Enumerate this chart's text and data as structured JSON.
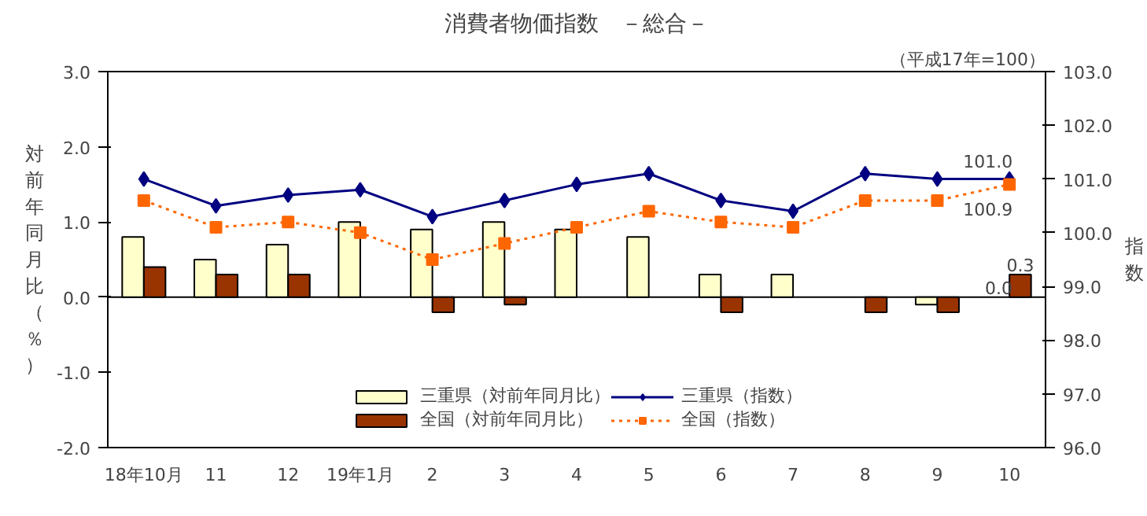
{
  "chart_data": {
    "type": "bar",
    "title": "消費者物価指数　－総合－",
    "subtitle": "（平成17年=100）",
    "ylabel": "対前年同月比（％）",
    "y2label": "指数",
    "categories": [
      "18年10月",
      "11",
      "12",
      "19年1月",
      "2",
      "3",
      "4",
      "5",
      "6",
      "7",
      "8",
      "9",
      "10"
    ],
    "series": [
      {
        "name": "三重県（対前年同月比）",
        "color": "#ffffcc",
        "values": [
          0.8,
          0.5,
          0.7,
          1.0,
          0.9,
          1.0,
          0.9,
          0.8,
          0.3,
          0.3,
          0.0,
          -0.1,
          0.0
        ],
        "value_labels": [
          null,
          null,
          null,
          null,
          null,
          null,
          null,
          null,
          null,
          null,
          null,
          null,
          "0.0"
        ]
      },
      {
        "name": "全国（対前年同月比）",
        "color": "#993300",
        "values": [
          0.4,
          0.3,
          0.3,
          0.0,
          -0.2,
          -0.1,
          0.0,
          0.0,
          -0.2,
          0.0,
          -0.2,
          -0.2,
          0.3
        ],
        "value_labels": [
          null,
          null,
          null,
          null,
          null,
          null,
          null,
          null,
          null,
          null,
          null,
          null,
          "0.3"
        ]
      },
      {
        "name": "三重県（指数）",
        "type": "line",
        "axis": "y2",
        "color": "#000080",
        "marker": "diamond",
        "line_style": "solid",
        "values": [
          101.0,
          100.5,
          100.7,
          100.8,
          100.3,
          100.6,
          100.9,
          101.1,
          100.6,
          100.4,
          101.1,
          101.0,
          101.0
        ],
        "value_labels": [
          null,
          null,
          null,
          null,
          null,
          null,
          null,
          null,
          null,
          null,
          null,
          null,
          "101.0"
        ]
      },
      {
        "name": "全国（指数）",
        "type": "line",
        "axis": "y2",
        "color": "#ff6600",
        "marker": "square",
        "line_style": "dotted",
        "values": [
          100.6,
          100.1,
          100.2,
          100.0,
          99.5,
          99.8,
          100.1,
          100.4,
          100.2,
          100.1,
          100.6,
          100.6,
          100.9
        ],
        "value_labels": [
          null,
          null,
          null,
          null,
          null,
          null,
          null,
          null,
          null,
          null,
          null,
          null,
          "100.9"
        ]
      }
    ],
    "ylim": [
      -2.0,
      3.0
    ],
    "yticks": [
      {
        "value": -2,
        "label": "-2.0"
      },
      {
        "value": -1,
        "label": "-1.0"
      },
      {
        "value": 0,
        "label": "0.0"
      },
      {
        "value": 1,
        "label": "1.0"
      },
      {
        "value": 2,
        "label": "2.0"
      },
      {
        "value": 3,
        "label": "3.0"
      }
    ],
    "y2lim": [
      96.0,
      103.0
    ],
    "y2ticks": [
      {
        "value": 96,
        "label": "96.0"
      },
      {
        "value": 97,
        "label": "97.0"
      },
      {
        "value": 98,
        "label": "98.0"
      },
      {
        "value": 99,
        "label": "99.0"
      },
      {
        "value": 100,
        "label": "100.0"
      },
      {
        "value": 101,
        "label": "101.0"
      },
      {
        "value": 102,
        "label": "102.0"
      },
      {
        "value": 103,
        "label": "103.0"
      }
    ],
    "ref_lines": [
      {
        "axis": "y",
        "value": 0,
        "color": "#000000"
      }
    ],
    "grid": false,
    "legend": "bottom"
  }
}
